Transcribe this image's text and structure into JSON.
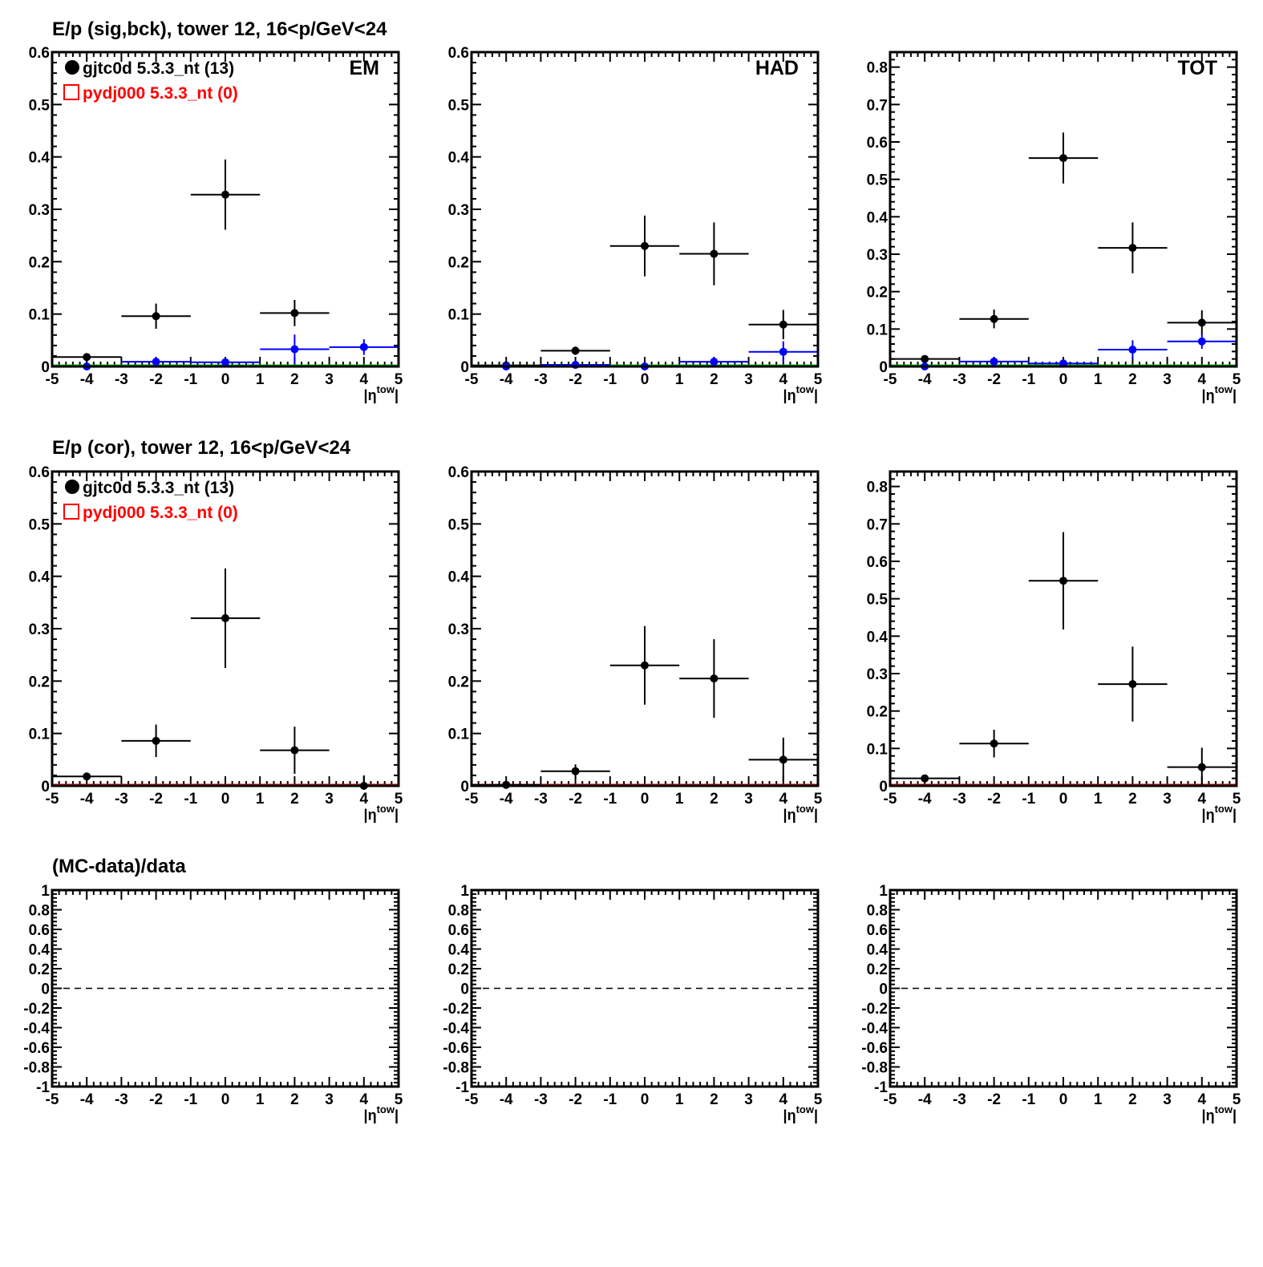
{
  "colors": {
    "data": "#000000",
    "bck": "#0000ff",
    "mc": "#ff0000",
    "zero_sig": "#00bb00",
    "zero_cor": "#dd0000"
  },
  "row_titles": [
    "E/p (sig,bck), tower 12, 16<p/GeV<24",
    "E/p (cor), tower 12, 16<p/GeV<24",
    "(MC-data)/data"
  ],
  "legend": {
    "data_label": "gjtc0d 5.3.3_nt (13)",
    "mc_label": "pydj000 5.3.3_nt (0)"
  },
  "chart_data": [
    {
      "type": "scatter",
      "row": 0,
      "col": 0,
      "panel_label": "EM",
      "ylim": [
        0,
        0.6
      ],
      "yticks": [
        "0",
        "0.1",
        "0.2",
        "0.3",
        "0.4",
        "0.5",
        "0.6"
      ],
      "ytick_values": [
        0,
        0.1,
        0.2,
        0.3,
        0.4,
        0.5,
        0.6
      ],
      "xlim": [
        -5,
        5
      ],
      "xticks": [
        "-5",
        "-4",
        "-3",
        "-2",
        "-1",
        "0",
        "1",
        "2",
        "3",
        "4",
        "5"
      ],
      "xlabel": "|η",
      "xlabel_sup": "tow",
      "xlabel_end": "|",
      "legend": true,
      "series": [
        {
          "name": "data",
          "color": "#000000",
          "x": [
            -4,
            -2,
            0,
            2
          ],
          "y": [
            0.018,
            0.096,
            0.328,
            0.102
          ],
          "yerr": [
            0.0,
            0.024,
            0.067,
            0.025
          ]
        },
        {
          "name": "bck",
          "color": "#0000ff",
          "x": [
            -4,
            -2,
            0,
            2,
            4
          ],
          "y": [
            0,
            0.009,
            0.008,
            0.033,
            0.037
          ],
          "yerr": [
            0,
            0.005,
            0.005,
            0.028,
            0.015
          ]
        }
      ],
      "zero_line": "#00bb00"
    },
    {
      "type": "scatter",
      "row": 0,
      "col": 1,
      "panel_label": "HAD",
      "ylim": [
        0,
        0.6
      ],
      "yticks": [
        "0",
        "0.1",
        "0.2",
        "0.3",
        "0.4",
        "0.5",
        "0.6"
      ],
      "ytick_values": [
        0,
        0.1,
        0.2,
        0.3,
        0.4,
        0.5,
        0.6
      ],
      "xlim": [
        -5,
        5
      ],
      "xticks": [
        "-5",
        "-4",
        "-3",
        "-2",
        "-1",
        "0",
        "1",
        "2",
        "3",
        "4",
        "5"
      ],
      "xlabel": "|η",
      "xlabel_sup": "tow",
      "xlabel_end": "|",
      "legend": false,
      "series": [
        {
          "name": "data",
          "color": "#000000",
          "x": [
            -4,
            -2,
            0,
            2,
            4
          ],
          "y": [
            0.002,
            0.03,
            0.23,
            0.215,
            0.08
          ],
          "yerr": [
            0.005,
            0.008,
            0.058,
            0.06,
            0.028
          ]
        },
        {
          "name": "bck",
          "color": "#0000ff",
          "x": [
            -4,
            -2,
            0,
            2,
            4
          ],
          "y": [
            0,
            0.003,
            0,
            0.009,
            0.028
          ],
          "yerr": [
            0,
            0.003,
            0,
            0.004,
            0.02
          ]
        }
      ],
      "zero_line": "#00bb00"
    },
    {
      "type": "scatter",
      "row": 0,
      "col": 2,
      "panel_label": "TOT",
      "ylim": [
        0,
        0.84
      ],
      "yticks": [
        "0",
        "0.1",
        "0.2",
        "0.3",
        "0.4",
        "0.5",
        "0.6",
        "0.7",
        "0.8"
      ],
      "ytick_values": [
        0,
        0.1,
        0.2,
        0.3,
        0.4,
        0.5,
        0.6,
        0.7,
        0.8
      ],
      "xlim": [
        -5,
        5
      ],
      "xticks": [
        "-5",
        "-4",
        "-3",
        "-2",
        "-1",
        "0",
        "1",
        "2",
        "3",
        "4",
        "5"
      ],
      "xlabel": "|η",
      "xlabel_sup": "tow",
      "xlabel_end": "|",
      "legend": false,
      "series": [
        {
          "name": "data",
          "color": "#000000",
          "x": [
            -4,
            -2,
            0,
            2,
            4
          ],
          "y": [
            0.02,
            0.127,
            0.557,
            0.317,
            0.117
          ],
          "yerr": [
            0,
            0.025,
            0.068,
            0.068,
            0.033
          ]
        },
        {
          "name": "bck",
          "color": "#0000ff",
          "x": [
            -4,
            -2,
            0,
            2,
            4
          ],
          "y": [
            0,
            0.013,
            0.008,
            0.045,
            0.067
          ],
          "yerr": [
            0,
            0.005,
            0.005,
            0.025,
            0.02
          ]
        }
      ],
      "zero_line": "#00bb00"
    },
    {
      "type": "scatter",
      "row": 1,
      "col": 0,
      "panel_label": "",
      "ylim": [
        0,
        0.6
      ],
      "yticks": [
        "0",
        "0.1",
        "0.2",
        "0.3",
        "0.4",
        "0.5",
        "0.6"
      ],
      "ytick_values": [
        0,
        0.1,
        0.2,
        0.3,
        0.4,
        0.5,
        0.6
      ],
      "xlim": [
        -5,
        5
      ],
      "xticks": [
        "-5",
        "-4",
        "-3",
        "-2",
        "-1",
        "0",
        "1",
        "2",
        "3",
        "4",
        "5"
      ],
      "xlabel": "|η",
      "xlabel_sup": "tow",
      "xlabel_end": "|",
      "legend": true,
      "series": [
        {
          "name": "data",
          "color": "#000000",
          "x": [
            -4,
            -2,
            0,
            2,
            4
          ],
          "y": [
            0.018,
            0.086,
            0.32,
            0.068,
            0
          ],
          "yerr": [
            0,
            0.031,
            0.095,
            0.045,
            0.02
          ]
        }
      ],
      "zero_line": "#dd0000"
    },
    {
      "type": "scatter",
      "row": 1,
      "col": 1,
      "panel_label": "",
      "ylim": [
        0,
        0.6
      ],
      "yticks": [
        "0",
        "0.1",
        "0.2",
        "0.3",
        "0.4",
        "0.5",
        "0.6"
      ],
      "ytick_values": [
        0,
        0.1,
        0.2,
        0.3,
        0.4,
        0.5,
        0.6
      ],
      "xlim": [
        -5,
        5
      ],
      "xticks": [
        "-5",
        "-4",
        "-3",
        "-2",
        "-1",
        "0",
        "1",
        "2",
        "3",
        "4",
        "5"
      ],
      "xlabel": "|η",
      "xlabel_sup": "tow",
      "xlabel_end": "|",
      "legend": false,
      "series": [
        {
          "name": "data",
          "color": "#000000",
          "x": [
            -4,
            -2,
            0,
            2,
            4
          ],
          "y": [
            0.002,
            0.028,
            0.23,
            0.205,
            0.05
          ],
          "yerr": [
            0.005,
            0.013,
            0.075,
            0.075,
            0.042
          ]
        }
      ],
      "zero_line": "#dd0000"
    },
    {
      "type": "scatter",
      "row": 1,
      "col": 2,
      "panel_label": "",
      "ylim": [
        0,
        0.84
      ],
      "yticks": [
        "0",
        "0.1",
        "0.2",
        "0.3",
        "0.4",
        "0.5",
        "0.6",
        "0.7",
        "0.8"
      ],
      "ytick_values": [
        0,
        0.1,
        0.2,
        0.3,
        0.4,
        0.5,
        0.6,
        0.7,
        0.8
      ],
      "xlim": [
        -5,
        5
      ],
      "xticks": [
        "-5",
        "-4",
        "-3",
        "-2",
        "-1",
        "0",
        "1",
        "2",
        "3",
        "4",
        "5"
      ],
      "xlabel": "|η",
      "xlabel_sup": "tow",
      "xlabel_end": "|",
      "legend": false,
      "series": [
        {
          "name": "data",
          "color": "#000000",
          "x": [
            -4,
            -2,
            0,
            2,
            4
          ],
          "y": [
            0.02,
            0.113,
            0.548,
            0.272,
            0.05
          ],
          "yerr": [
            0,
            0.037,
            0.13,
            0.1,
            0.052
          ]
        }
      ],
      "zero_line": "#dd0000"
    },
    {
      "type": "line",
      "row": 2,
      "col": 0,
      "panel_label": "",
      "ylim": [
        -1,
        1
      ],
      "yticks": [
        "-1",
        "-0.8",
        "-0.6",
        "-0.4",
        "-0.2",
        "0",
        "0.2",
        "0.4",
        "0.6",
        "0.8",
        "1"
      ],
      "ytick_values": [
        -1,
        -0.8,
        -0.6,
        -0.4,
        -0.2,
        0,
        0.2,
        0.4,
        0.6,
        0.8,
        1
      ],
      "xlim": [
        -5,
        5
      ],
      "xticks": [
        "-5",
        "-4",
        "-3",
        "-2",
        "-1",
        "0",
        "1",
        "2",
        "3",
        "4",
        "5"
      ],
      "xlabel": "|η",
      "xlabel_sup": "tow",
      "xlabel_end": "|",
      "legend": false,
      "series": [],
      "dashed_zero": true
    },
    {
      "type": "line",
      "row": 2,
      "col": 1,
      "panel_label": "",
      "ylim": [
        -1,
        1
      ],
      "yticks": [
        "-1",
        "-0.8",
        "-0.6",
        "-0.4",
        "-0.2",
        "0",
        "0.2",
        "0.4",
        "0.6",
        "0.8",
        "1"
      ],
      "ytick_values": [
        -1,
        -0.8,
        -0.6,
        -0.4,
        -0.2,
        0,
        0.2,
        0.4,
        0.6,
        0.8,
        1
      ],
      "xlim": [
        -5,
        5
      ],
      "xticks": [
        "-5",
        "-4",
        "-3",
        "-2",
        "-1",
        "0",
        "1",
        "2",
        "3",
        "4",
        "5"
      ],
      "xlabel": "|η",
      "xlabel_sup": "tow",
      "xlabel_end": "|",
      "legend": false,
      "series": [],
      "dashed_zero": true
    },
    {
      "type": "line",
      "row": 2,
      "col": 2,
      "panel_label": "",
      "ylim": [
        -1,
        1
      ],
      "yticks": [
        "-1",
        "-0.8",
        "-0.6",
        "-0.4",
        "-0.2",
        "0",
        "0.2",
        "0.4",
        "0.6",
        "0.8",
        "1"
      ],
      "ytick_values": [
        -1,
        -0.8,
        -0.6,
        -0.4,
        -0.2,
        0,
        0.2,
        0.4,
        0.6,
        0.8,
        1
      ],
      "xlim": [
        -5,
        5
      ],
      "xticks": [
        "-5",
        "-4",
        "-3",
        "-2",
        "-1",
        "0",
        "1",
        "2",
        "3",
        "4",
        "5"
      ],
      "xlabel": "|η",
      "xlabel_sup": "tow",
      "xlabel_end": "|",
      "legend": false,
      "series": [],
      "dashed_zero": true
    }
  ]
}
